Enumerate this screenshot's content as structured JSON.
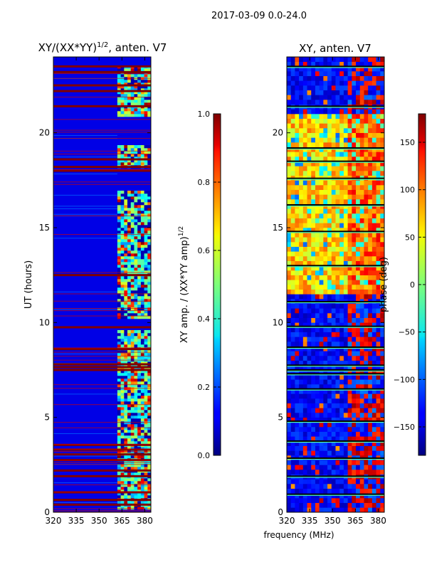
{
  "figure_title": "2017-03-09 0.0-24.0",
  "chart_data": [
    {
      "type": "heatmap",
      "title": "XY/(XX*YY)^1/2, anten. V7",
      "title_parts": {
        "main": "XY/(XX*YY)",
        "sup": "1/2",
        "suffix": ", anten. V7"
      },
      "xlabel": "",
      "ylabel": "UT (hours)",
      "xlim": [
        320,
        384
      ],
      "ylim": [
        0,
        24
      ],
      "x_ticks": [
        320,
        335,
        350,
        365,
        380
      ],
      "y_ticks": [
        0,
        5,
        10,
        15,
        20
      ],
      "colorbar": {
        "label": "XY amp. / (XX*YY amp)^1/2",
        "label_parts": {
          "main": "XY amp. / (XX*YY amp)",
          "sup": "1/2"
        },
        "range": [
          0.0,
          1.0
        ],
        "ticks": [
          "0.0",
          "0.2",
          "0.4",
          "0.6",
          "0.8",
          "1.0"
        ],
        "tick_values": [
          0.0,
          0.2,
          0.4,
          0.6,
          0.8,
          1.0
        ],
        "colormap": "jet"
      },
      "description_values": {
        "background_level": 0.1,
        "active_band_mhz": [
          362,
          384
        ],
        "flagged_hours": [
          0.4,
          0.65,
          1.05,
          1.9,
          2.2,
          2.75,
          3.05,
          3.3,
          3.55,
          7.5,
          7.65,
          7.8,
          8.6,
          9.75,
          12.5,
          18.0,
          18.2,
          18.6,
          21.4,
          22.2,
          22.5,
          23.2,
          23.5
        ]
      }
    },
    {
      "type": "heatmap",
      "title": "XY, anten. V7",
      "xlabel": "frequency (MHz)",
      "ylabel": "",
      "xlim": [
        320,
        384
      ],
      "ylim": [
        0,
        24
      ],
      "x_ticks": [
        320,
        335,
        350,
        365,
        380
      ],
      "y_ticks": [
        0,
        5,
        10,
        15,
        20
      ],
      "colorbar": {
        "label": "phase (deg)",
        "range": [
          -180,
          180
        ],
        "ticks": [
          "150",
          "100",
          "50",
          "0",
          "−50",
          "−100",
          "−150"
        ],
        "tick_values": [
          150,
          100,
          50,
          0,
          -50,
          -100,
          -150
        ],
        "colormap": "jet"
      },
      "description_values": {
        "dominant_phase_deg": -130,
        "warm_region_hours": [
          [
            11.5,
            21.0
          ]
        ],
        "gap_hours": [
          0.95,
          1.9,
          2.85,
          3.75,
          4.8,
          6.5,
          7.3,
          7.5,
          7.75,
          8.7,
          9.8,
          11.1,
          13.0,
          14.8,
          16.2,
          17.6,
          18.5,
          19.2,
          21.4,
          23.5
        ]
      }
    }
  ]
}
